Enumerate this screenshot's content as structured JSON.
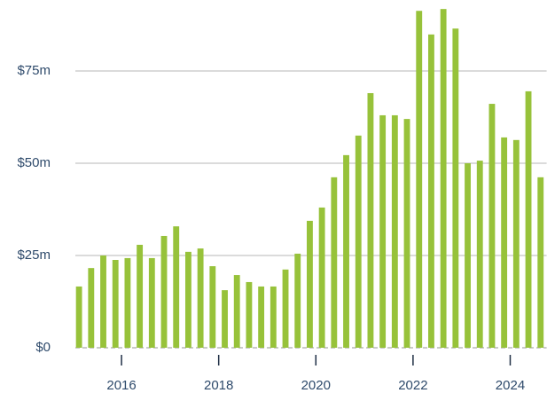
{
  "chart_data": {
    "type": "bar",
    "x": [
      2015.125,
      2015.375,
      2015.625,
      2015.875,
      2016.125,
      2016.375,
      2016.625,
      2016.875,
      2017.125,
      2017.375,
      2017.625,
      2017.875,
      2018.125,
      2018.375,
      2018.625,
      2018.875,
      2019.125,
      2019.375,
      2019.625,
      2019.875,
      2020.125,
      2020.375,
      2020.625,
      2020.875,
      2021.125,
      2021.375,
      2021.625,
      2021.875,
      2022.125,
      2022.375,
      2022.625,
      2022.875,
      2023.125,
      2023.375,
      2023.625,
      2023.875,
      2024.125,
      2024.375,
      2024.625
    ],
    "values": [
      16.6,
      21.6,
      25,
      23.8,
      24.3,
      27.9,
      24.3,
      30.3,
      32.9,
      26,
      26.9,
      22.1,
      15.6,
      19.7,
      17.8,
      16.6,
      16.6,
      21.2,
      25.5,
      34.4,
      38,
      46.2,
      52.2,
      57.5,
      69,
      63,
      63,
      62,
      91.3,
      84.9,
      91.8,
      86.5,
      50,
      50.7,
      66.1,
      57,
      56.3,
      69.5,
      46.2
    ],
    "color": "#97c23a",
    "xlim": [
      2015.05,
      2024.75
    ],
    "xticks": [
      2016,
      2018,
      2020,
      2022,
      2024
    ],
    "ylim": [
      0,
      94
    ],
    "yticks": [
      {
        "value": 0,
        "label": "$0"
      },
      {
        "value": 25,
        "label": "$25m"
      },
      {
        "value": 50,
        "label": "$50m"
      },
      {
        "value": 75,
        "label": "$75m"
      }
    ],
    "grid": true
  }
}
